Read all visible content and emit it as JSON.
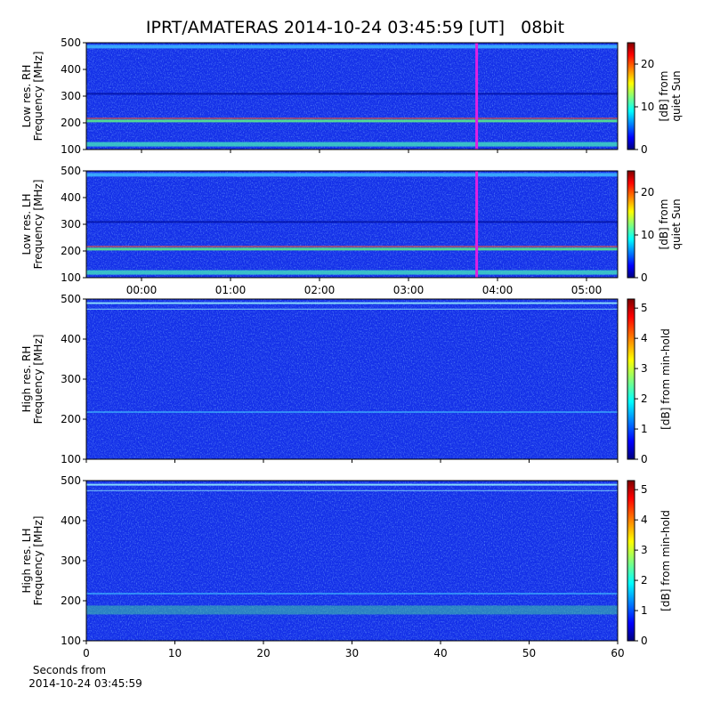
{
  "chart_data": [
    {
      "type": "spectrogram",
      "title": "IPRT/AMATERAS 2014-10-24 03:45:59 [UT]   08bit",
      "ylabel": [
        "Low res. RH",
        "Frequency [MHz]"
      ],
      "ylim": [
        100,
        500
      ],
      "yticks": [
        100,
        200,
        300,
        400,
        500
      ],
      "xlim": [
        -0.62,
        5.35
      ],
      "marker_x": 3.766,
      "marker_color": "#e020e0",
      "colormap": "jet",
      "colorbar_label": [
        "[dB] from",
        "quiet Sun"
      ],
      "clim": [
        0,
        25
      ],
      "cticks": [
        0,
        10,
        20
      ]
    },
    {
      "type": "spectrogram",
      "ylabel": [
        "Low res. LH",
        "Frequency [MHz]"
      ],
      "ylim": [
        100,
        500
      ],
      "yticks": [
        100,
        200,
        300,
        400,
        500
      ],
      "xlim": [
        -0.62,
        5.35
      ],
      "xticks": [
        {
          "value": 0,
          "label": "00:00"
        },
        {
          "value": 1,
          "label": "01:00"
        },
        {
          "value": 2,
          "label": "02:00"
        },
        {
          "value": 3,
          "label": "03:00"
        },
        {
          "value": 4,
          "label": "04:00"
        },
        {
          "value": 5,
          "label": "05:00"
        }
      ],
      "marker_x": 3.766,
      "marker_color": "#e020e0",
      "colormap": "jet",
      "colorbar_label": [
        "[dB] from",
        "quiet Sun"
      ],
      "clim": [
        0,
        25
      ],
      "cticks": [
        0,
        10,
        20
      ]
    },
    {
      "type": "spectrogram",
      "ylabel": [
        "High res. RH",
        "Frequency [MHz]"
      ],
      "ylim": [
        100,
        500
      ],
      "yticks": [
        100,
        200,
        300,
        400,
        500
      ],
      "xlim": [
        0,
        60
      ],
      "colormap": "jet",
      "colorbar_label": [
        "[dB] from min-hold"
      ],
      "clim": [
        0,
        5.3
      ],
      "cticks": [
        0,
        1,
        2,
        3,
        4,
        5
      ]
    },
    {
      "type": "spectrogram",
      "ylabel": [
        "High res. LH",
        "Frequency [MHz]"
      ],
      "ylim": [
        100,
        500
      ],
      "yticks": [
        100,
        200,
        300,
        400,
        500
      ],
      "xlim": [
        0,
        60
      ],
      "xticks": [
        0,
        10,
        20,
        30,
        40,
        50,
        60
      ],
      "xlabel": [
        "Seconds from",
        "2014-10-24 03:45:59"
      ],
      "colormap": "jet",
      "colorbar_label": [
        "[dB] from min-hold"
      ],
      "clim": [
        0,
        5.3
      ],
      "cticks": [
        0,
        1,
        2,
        3,
        4,
        5
      ]
    }
  ]
}
